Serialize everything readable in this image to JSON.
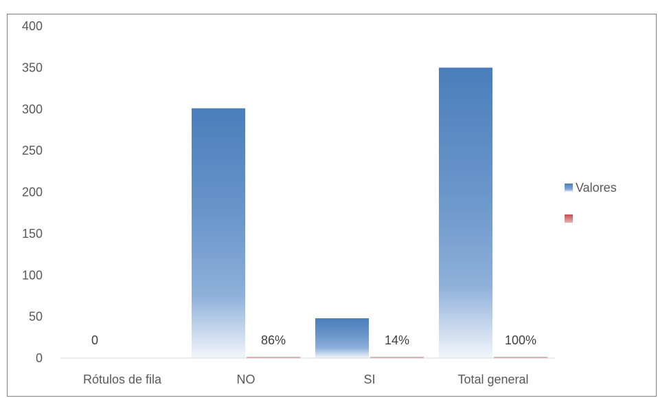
{
  "chart_data": {
    "type": "bar",
    "categories": [
      "Rótulos de fila",
      "NO",
      "SI",
      "Total general"
    ],
    "series": [
      {
        "name": "Valores",
        "values": [
          0,
          301,
          48,
          350
        ],
        "color": "#4f81bd",
        "data_labels": [
          "0",
          "",
          "",
          ""
        ]
      },
      {
        "name": "",
        "values": [
          0,
          0.86,
          0.14,
          1.0
        ],
        "color": "#c0504d",
        "data_labels": [
          "",
          "86%",
          "14%",
          "100%"
        ]
      }
    ],
    "ylim": [
      0,
      400
    ],
    "yticks": [
      "0",
      "50",
      "100",
      "150",
      "200",
      "250",
      "300",
      "350",
      "400"
    ],
    "xlabel": "",
    "ylabel": "",
    "legend_position": "right",
    "grid": false
  }
}
